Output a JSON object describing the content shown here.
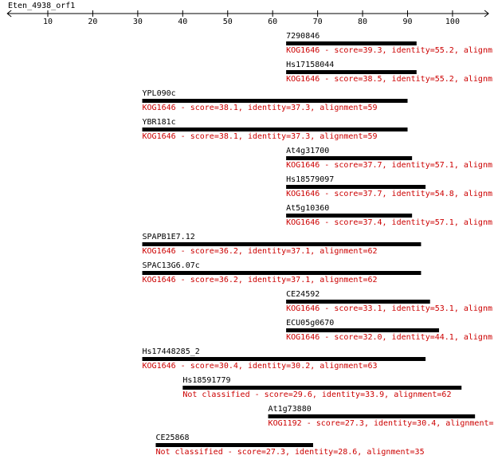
{
  "chart_data": {
    "type": "range-bar",
    "title": "Eten_4938_orf1",
    "xlim": [
      1,
      108
    ],
    "xticks": [
      10,
      20,
      30,
      40,
      50,
      60,
      70,
      80,
      90,
      100
    ],
    "bar_color": "#000000",
    "name_color": "#000000",
    "description_color": "#cc0000",
    "hits": [
      {
        "name": "7290846",
        "description": "KOG1646 - score=39.3, identity=55.2, alignm",
        "start": 63,
        "end": 92
      },
      {
        "name": "Hs17158044",
        "description": "KOG1646 - score=38.5, identity=55.2, alignm",
        "start": 63,
        "end": 92
      },
      {
        "name": "YPL090c",
        "description": "KOG1646 - score=38.1, identity=37.3, alignment=59",
        "start": 31,
        "end": 90
      },
      {
        "name": "YBR181c",
        "description": "KOG1646 - score=38.1, identity=37.3, alignment=59",
        "start": 31,
        "end": 90
      },
      {
        "name": "At4g31700",
        "description": "KOG1646 - score=37.7, identity=57.1, alignm",
        "start": 63,
        "end": 91
      },
      {
        "name": "Hs18579097",
        "description": "KOG1646 - score=37.7, identity=54.8, alignm",
        "start": 63,
        "end": 94
      },
      {
        "name": "At5g10360",
        "description": "KOG1646 - score=37.4, identity=57.1, alignm",
        "start": 63,
        "end": 91
      },
      {
        "name": "SPAPB1E7.12",
        "description": "KOG1646 - score=36.2, identity=37.1, alignment=62",
        "start": 31,
        "end": 93
      },
      {
        "name": "SPAC13G6.07c",
        "description": "KOG1646 - score=36.2, identity=37.1, alignment=62",
        "start": 31,
        "end": 93
      },
      {
        "name": "CE24592",
        "description": "KOG1646 - score=33.1, identity=53.1, alignm",
        "start": 63,
        "end": 95
      },
      {
        "name": "ECU05g0670",
        "description": "KOG1646 - score=32.0, identity=44.1, alignm",
        "start": 63,
        "end": 97
      },
      {
        "name": "Hs17448285_2",
        "description": "KOG1646 - score=30.4, identity=30.2, alignment=63",
        "start": 31,
        "end": 94
      },
      {
        "name": "Hs18591779",
        "description": "Not classified - score=29.6, identity=33.9, alignment=62",
        "start": 40,
        "end": 102
      },
      {
        "name": "At1g73880",
        "description": "KOG1192 - score=27.3, identity=30.4, alignment=",
        "start": 59,
        "end": 105
      },
      {
        "name": "CE25868",
        "description": "Not classified - score=27.3, identity=28.6, alignment=35",
        "start": 34,
        "end": 69
      }
    ]
  }
}
